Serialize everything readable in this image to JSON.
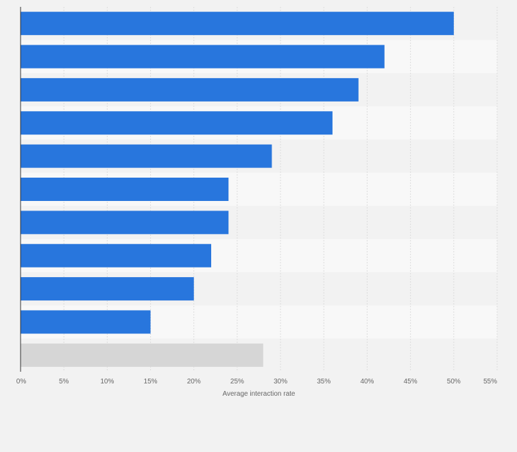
{
  "chart_data": {
    "type": "bar",
    "orientation": "horizontal",
    "categories": [
      "",
      "",
      "",
      "",
      "",
      "",
      "",
      "",
      "",
      "",
      ""
    ],
    "values": [
      50,
      42,
      39,
      36,
      29,
      24,
      24,
      22,
      20,
      15,
      28
    ],
    "highlight_last": true,
    "xlabel": "Average interaction rate",
    "ylabel": "",
    "xlim": [
      0,
      55
    ],
    "x_ticks": [
      0,
      5,
      10,
      15,
      20,
      25,
      30,
      35,
      40,
      45,
      50,
      55
    ],
    "x_tick_labels": [
      "0%",
      "5%",
      "10%",
      "15%",
      "20%",
      "25%",
      "30%",
      "35%",
      "40%",
      "45%",
      "50%",
      "55%"
    ],
    "grid": "vertical",
    "colors": {
      "bar": "#2876dd",
      "bar_muted": "#d6d6d6",
      "band_dark": "#f2f2f2",
      "band_light": "#f8f8f8",
      "grid": "#dcdcdc",
      "axis": "#333333",
      "tick_text": "#666666",
      "page_bg": "#f2f2f2"
    }
  }
}
